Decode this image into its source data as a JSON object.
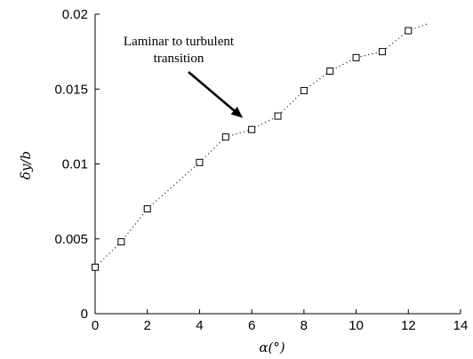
{
  "chart_data": {
    "type": "scatter",
    "title": "",
    "xlabel": "α(°)",
    "ylabel": "δy/b",
    "xlim": [
      0,
      14
    ],
    "ylim": [
      0,
      0.02
    ],
    "xticks": [
      "0",
      "2",
      "4",
      "6",
      "8",
      "10",
      "12",
      "14"
    ],
    "yticks": [
      "0",
      "0.005",
      "0.01",
      "0.015",
      "0.02"
    ],
    "grid": false,
    "legend": "none",
    "series": [
      {
        "x": [
          0,
          1,
          2,
          4,
          5,
          6,
          7,
          8,
          9,
          10,
          11,
          12
        ],
        "y": [
          0.0031,
          0.0048,
          0.007,
          0.0101,
          0.0118,
          0.0123,
          0.0132,
          0.0149,
          0.0162,
          0.0171,
          0.0175,
          0.0189
        ],
        "marker": "open-square"
      }
    ],
    "trend_line": {
      "style": "dotted",
      "x": [
        0,
        1,
        2,
        4,
        5,
        6,
        7,
        8,
        9,
        10,
        11,
        12,
        12.8
      ],
      "y": [
        0.0031,
        0.0048,
        0.007,
        0.0101,
        0.0118,
        0.0123,
        0.0132,
        0.0149,
        0.0162,
        0.0171,
        0.0175,
        0.0189,
        0.0194
      ]
    },
    "annotation": {
      "lines": [
        "Laminar to turbulent",
        "transition"
      ],
      "points_to": {
        "x": 6,
        "y": 0.0123
      }
    }
  }
}
